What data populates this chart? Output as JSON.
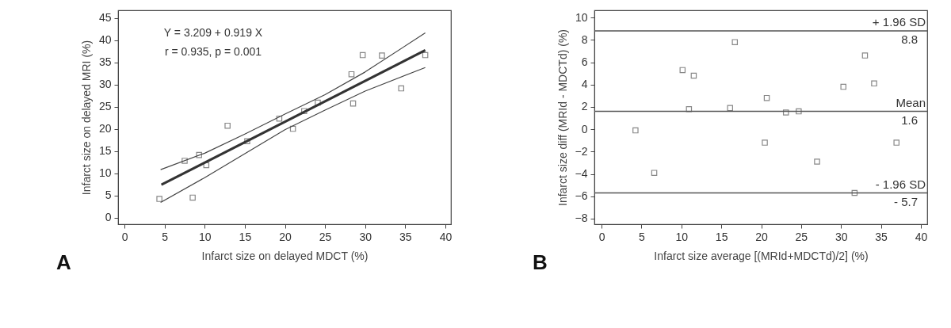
{
  "chart_data": [
    {
      "type": "scatter",
      "xlabel": "Infarct size on delayed MDCT (%)",
      "ylabel": "Infarct size on delayed MRI (%)",
      "xlim": [
        -0.8,
        40.7
      ],
      "ylim": [
        -1.5,
        46.7
      ],
      "xticks": [
        0,
        5,
        10,
        15,
        20,
        25,
        30,
        35,
        40
      ],
      "yticks": [
        0,
        5,
        10,
        15,
        20,
        25,
        30,
        35,
        40,
        45
      ],
      "grid": false,
      "annotations": [
        "Y = 3.209 + 0.919 X",
        "r = 0.935, p = 0.001",
        "A"
      ],
      "series": [
        {
          "type": "scatter",
          "marker": "square",
          "color": "#555555",
          "x": [
            4.35,
            7.5,
            8.5,
            9.3,
            10.2,
            12.85,
            15.3,
            19.3,
            21.0,
            22.4,
            24.1,
            28.3,
            28.5,
            29.7,
            32.1,
            34.5,
            37.5
          ],
          "values": [
            4.2,
            12.8,
            4.5,
            14.1,
            11.8,
            20.7,
            17.2,
            22.3,
            20.0,
            24.0,
            25.9,
            32.3,
            25.7,
            36.6,
            36.5,
            29.1,
            36.6
          ]
        },
        {
          "type": "line",
          "color": "#333333",
          "line_style": "solid",
          "x": [
            4.6,
            37.5
          ],
          "values": [
            7.4,
            37.7
          ]
        },
        {
          "type": "line",
          "color": "#444444",
          "line_style": "solid",
          "x": [
            4.5,
            10,
            15,
            20,
            25,
            30,
            37.5
          ],
          "values": [
            10.8,
            14.5,
            18.8,
            23.3,
            27.7,
            32.8,
            41.6
          ]
        },
        {
          "type": "line",
          "color": "#444444",
          "line_style": "solid",
          "x": [
            4.5,
            10,
            15,
            20,
            25,
            30,
            37.5
          ],
          "values": [
            3.4,
            9.0,
            14.4,
            19.8,
            24.2,
            28.5,
            33.8
          ]
        }
      ]
    },
    {
      "type": "scatter",
      "xlabel": "Infarct size average [(MRId+MDCTd)/2] (%)",
      "ylabel": "Infarct size diff (MRId - MDCTd) (%)",
      "xlim": [
        -0.9,
        40.8
      ],
      "ylim": [
        -8.5,
        10.65
      ],
      "xticks": [
        0,
        5,
        10,
        15,
        20,
        25,
        30,
        35,
        40
      ],
      "yticks": [
        -8,
        -6,
        -4,
        -2,
        0,
        2,
        4,
        6,
        8,
        10
      ],
      "grid": false,
      "marker": "square",
      "ref_lines": [
        {
          "axis": "y",
          "value": 8.8,
          "label": "+ 1.96 SD",
          "color": "#555555"
        },
        {
          "axis": "y",
          "value": 1.6,
          "label": "Mean",
          "color": "#555555"
        },
        {
          "axis": "y",
          "value": -5.7,
          "label": "- 1.96 SD",
          "color": "#555555"
        }
      ],
      "annotations": [
        {
          "text": "8.8",
          "y": 8.8
        },
        {
          "text": "1.6",
          "y": 1.6
        },
        {
          "text": "- 5.7",
          "y": -5.7
        },
        "B"
      ],
      "series": [
        {
          "type": "scatter",
          "color": "#555555",
          "x": [
            4.25,
            6.6,
            10.15,
            10.95,
            11.55,
            16.1,
            16.7,
            20.45,
            20.7,
            23.1,
            24.7,
            27.0,
            30.3,
            31.7,
            33.0,
            34.15,
            36.95
          ],
          "values": [
            -0.1,
            -3.9,
            5.3,
            1.8,
            4.8,
            1.9,
            7.8,
            -1.2,
            2.8,
            1.5,
            1.6,
            -2.9,
            3.8,
            -5.7,
            6.6,
            4.1,
            -1.2
          ]
        }
      ]
    }
  ]
}
